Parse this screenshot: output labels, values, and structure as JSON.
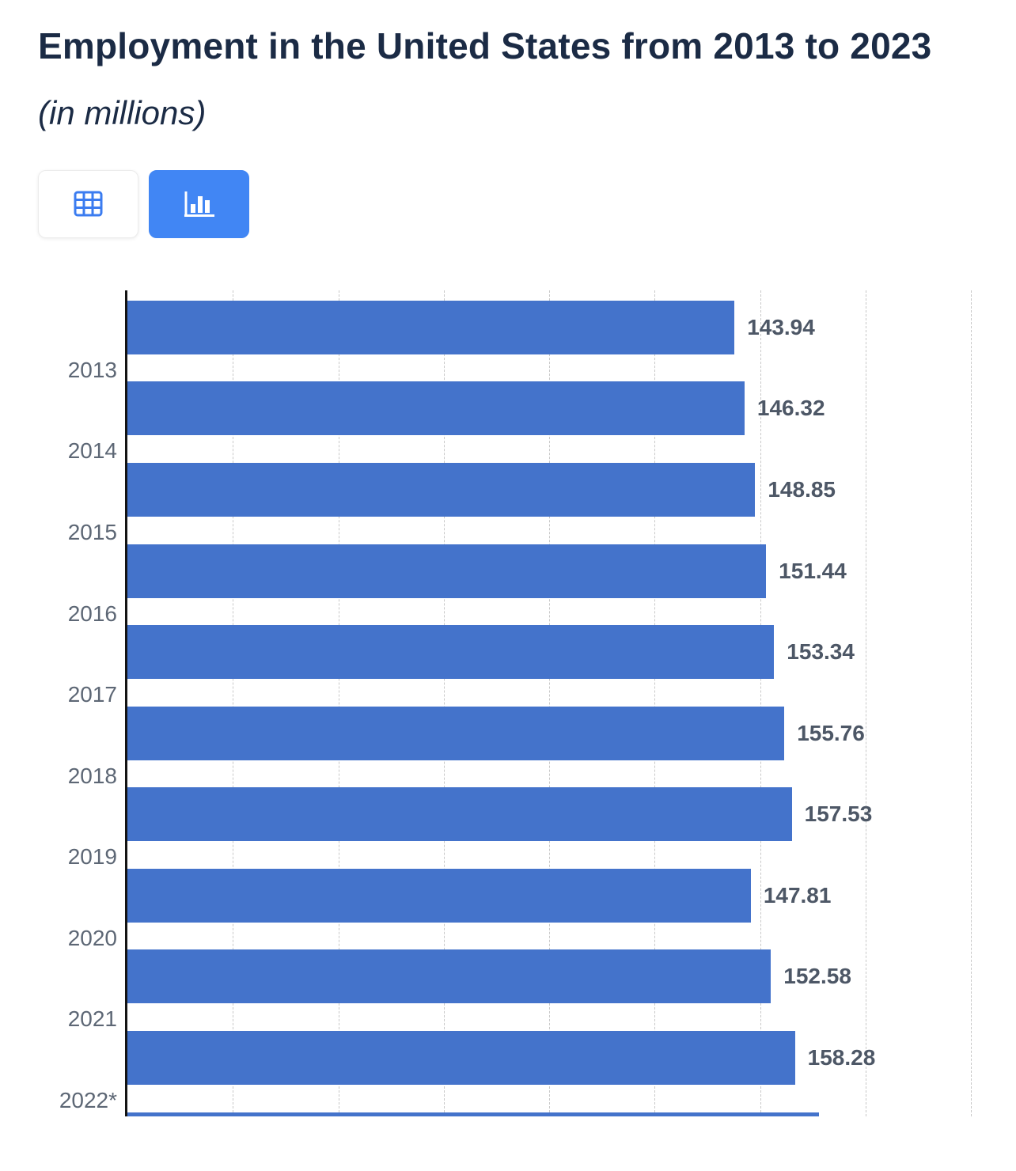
{
  "page": {
    "title": "Employment in the United States from 2013 to 2023",
    "subtitle": "(in millions)"
  },
  "toolbar": {
    "table_view_icon": "table-grid-icon",
    "chart_view_icon": "bar-chart-icon",
    "active_view": "chart",
    "active_color": "#4186f4"
  },
  "chart_data": {
    "type": "bar",
    "orientation": "horizontal",
    "title": "Employment in the United States from 2013 to 2023",
    "unit": "in millions",
    "xlim": [
      0,
      200
    ],
    "gridline_count": 8,
    "grid": true,
    "bar_color": "#4473cb",
    "categories": [
      "2013",
      "2014",
      "2015",
      "2016",
      "2017",
      "2018",
      "2019",
      "2020",
      "2021",
      "2022*"
    ],
    "values": [
      143.94,
      146.32,
      148.85,
      151.44,
      153.34,
      155.76,
      157.53,
      147.81,
      152.58,
      158.28
    ],
    "items": [
      {
        "year": "2013",
        "value": 143.94
      },
      {
        "year": "2014",
        "value": 146.32
      },
      {
        "year": "2015",
        "value": 148.85
      },
      {
        "year": "2016",
        "value": 151.44
      },
      {
        "year": "2017",
        "value": 153.34
      },
      {
        "year": "2018",
        "value": 155.76
      },
      {
        "year": "2019",
        "value": 157.53
      },
      {
        "year": "2020",
        "value": 147.81
      },
      {
        "year": "2021",
        "value": 152.58
      },
      {
        "year": "2022*",
        "value": 158.28
      },
      {
        "year": "",
        "value": null,
        "partial": true
      }
    ],
    "partial_last_bar_width_pct": 82
  }
}
